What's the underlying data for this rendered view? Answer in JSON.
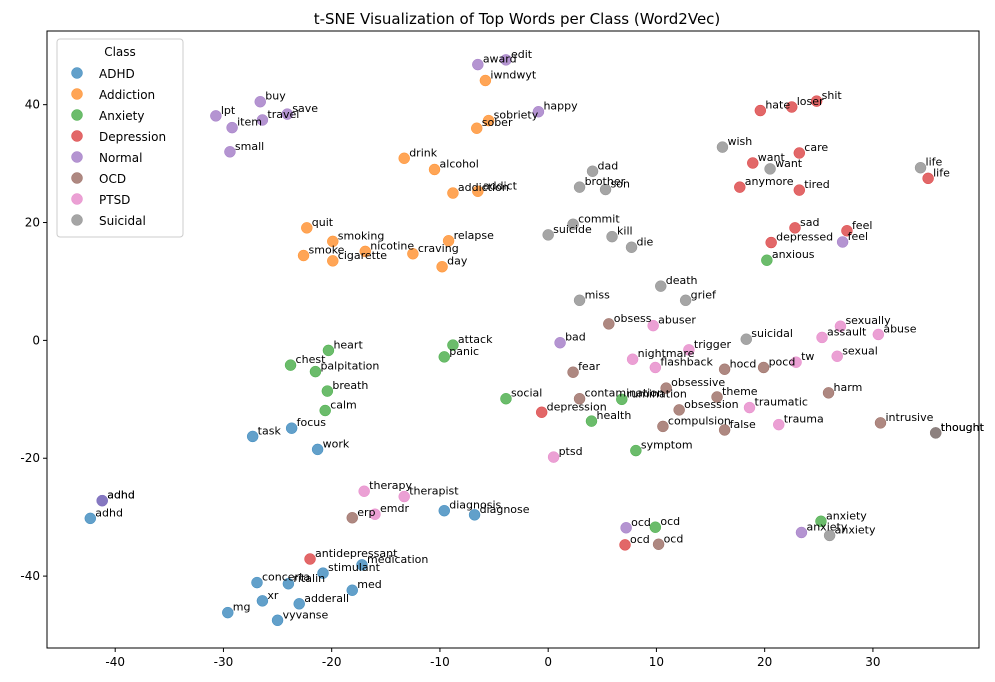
{
  "chart_data": {
    "type": "scatter",
    "title": "t-SNE Visualization of Top Words per Class (Word2Vec)",
    "xlabel": "",
    "ylabel": "",
    "xlim": [
      -46.3,
      39.8
    ],
    "ylim": [
      -52.2,
      52.5
    ],
    "xticks": [
      -40,
      -30,
      -20,
      -10,
      0,
      10,
      20,
      30
    ],
    "yticks": [
      -40,
      -20,
      0,
      20,
      40
    ],
    "grid": false,
    "legend": {
      "title": "Class",
      "placement": "top-left"
    },
    "series": [
      {
        "name": "ADHD",
        "color": "#1f77b4",
        "points": [
          {
            "x": -42.3,
            "y": -30.2,
            "label": "adhd"
          },
          {
            "x": -41.2,
            "y": -27.2,
            "label": "adhd"
          },
          {
            "x": -27.3,
            "y": -16.3,
            "label": "task"
          },
          {
            "x": -23.7,
            "y": -14.9,
            "label": "focus"
          },
          {
            "x": -21.3,
            "y": -18.5,
            "label": "work"
          },
          {
            "x": -9.6,
            "y": -28.9,
            "label": "diagnosis"
          },
          {
            "x": -6.8,
            "y": -29.6,
            "label": "diagnose"
          },
          {
            "x": -17.2,
            "y": -38.1,
            "label": "medication"
          },
          {
            "x": -20.8,
            "y": -39.5,
            "label": "stimulant"
          },
          {
            "x": -26.9,
            "y": -41.1,
            "label": "concerta"
          },
          {
            "x": -24.0,
            "y": -41.3,
            "label": "ritalin"
          },
          {
            "x": -18.1,
            "y": -42.4,
            "label": "med"
          },
          {
            "x": -26.4,
            "y": -44.2,
            "label": "xr"
          },
          {
            "x": -23.0,
            "y": -44.7,
            "label": "adderall"
          },
          {
            "x": -29.6,
            "y": -46.2,
            "label": "mg"
          },
          {
            "x": -25.0,
            "y": -47.5,
            "label": "vyvanse"
          }
        ]
      },
      {
        "name": "Addiction",
        "color": "#ff7f0e",
        "points": [
          {
            "x": -5.8,
            "y": 44.1,
            "label": "iwndwyt"
          },
          {
            "x": -5.5,
            "y": 37.3,
            "label": "sobriety"
          },
          {
            "x": -6.6,
            "y": 36.0,
            "label": "sober"
          },
          {
            "x": -13.3,
            "y": 30.9,
            "label": "drink"
          },
          {
            "x": -10.5,
            "y": 29.0,
            "label": "alcohol"
          },
          {
            "x": -8.8,
            "y": 25.0,
            "label": "addiction"
          },
          {
            "x": -6.5,
            "y": 25.3,
            "label": "addict"
          },
          {
            "x": -22.3,
            "y": 19.1,
            "label": "quit"
          },
          {
            "x": -19.9,
            "y": 16.8,
            "label": "smoking"
          },
          {
            "x": -9.2,
            "y": 16.9,
            "label": "relapse"
          },
          {
            "x": -16.9,
            "y": 15.1,
            "label": "nicotine"
          },
          {
            "x": -12.5,
            "y": 14.7,
            "label": "craving"
          },
          {
            "x": -22.6,
            "y": 14.4,
            "label": "smoke"
          },
          {
            "x": -19.9,
            "y": 13.5,
            "label": "cigarette"
          },
          {
            "x": -9.8,
            "y": 12.5,
            "label": "day"
          }
        ]
      },
      {
        "name": "Anxiety",
        "color": "#2ca02c",
        "points": [
          {
            "x": 20.2,
            "y": 13.6,
            "label": "anxious"
          },
          {
            "x": -8.8,
            "y": -0.8,
            "label": "attack"
          },
          {
            "x": -9.6,
            "y": -2.8,
            "label": "panic"
          },
          {
            "x": -20.3,
            "y": -1.7,
            "label": "heart"
          },
          {
            "x": -23.8,
            "y": -4.2,
            "label": "chest"
          },
          {
            "x": -21.5,
            "y": -5.3,
            "label": "palpitation"
          },
          {
            "x": -20.4,
            "y": -8.6,
            "label": "breath"
          },
          {
            "x": -20.6,
            "y": -11.9,
            "label": "calm"
          },
          {
            "x": -3.9,
            "y": -9.9,
            "label": "social"
          },
          {
            "x": 6.8,
            "y": -10.0,
            "label": "rumination"
          },
          {
            "x": 4.0,
            "y": -13.7,
            "label": "health"
          },
          {
            "x": 8.1,
            "y": -18.7,
            "label": "symptom"
          },
          {
            "x": 9.9,
            "y": -31.7,
            "label": "ocd"
          },
          {
            "x": 25.2,
            "y": -30.7,
            "label": "anxiety"
          }
        ]
      },
      {
        "name": "Depression",
        "color": "#d62728",
        "points": [
          {
            "x": 24.8,
            "y": 40.6,
            "label": "shit"
          },
          {
            "x": 22.5,
            "y": 39.6,
            "label": "loser"
          },
          {
            "x": 19.6,
            "y": 39.0,
            "label": "hate"
          },
          {
            "x": 23.2,
            "y": 31.8,
            "label": "care"
          },
          {
            "x": 18.9,
            "y": 30.1,
            "label": "want"
          },
          {
            "x": 17.7,
            "y": 26.0,
            "label": "anymore"
          },
          {
            "x": 23.2,
            "y": 25.5,
            "label": "tired"
          },
          {
            "x": 35.1,
            "y": 27.5,
            "label": "life"
          },
          {
            "x": 22.8,
            "y": 19.1,
            "label": "sad"
          },
          {
            "x": 27.6,
            "y": 18.6,
            "label": "feel"
          },
          {
            "x": 20.6,
            "y": 16.6,
            "label": "depressed"
          },
          {
            "x": -0.6,
            "y": -12.2,
            "label": "depression"
          },
          {
            "x": -22.0,
            "y": -37.1,
            "label": "antidepressant"
          },
          {
            "x": 7.1,
            "y": -34.7,
            "label": "ocd"
          }
        ]
      },
      {
        "name": "Normal",
        "color": "#9467bd",
        "points": [
          {
            "x": -3.9,
            "y": 47.6,
            "label": "edit"
          },
          {
            "x": -6.5,
            "y": 46.8,
            "label": "award"
          },
          {
            "x": -0.9,
            "y": 38.8,
            "label": "happy"
          },
          {
            "x": -26.6,
            "y": 40.5,
            "label": "buy"
          },
          {
            "x": -24.1,
            "y": 38.4,
            "label": "save"
          },
          {
            "x": -30.7,
            "y": 38.1,
            "label": "lpt"
          },
          {
            "x": -26.4,
            "y": 37.4,
            "label": "travel"
          },
          {
            "x": -29.2,
            "y": 36.1,
            "label": "item"
          },
          {
            "x": -29.4,
            "y": 32.0,
            "label": "small"
          },
          {
            "x": 27.2,
            "y": 16.7,
            "label": "feel"
          },
          {
            "x": 1.1,
            "y": -0.4,
            "label": "bad"
          },
          {
            "x": -41.2,
            "y": -27.2,
            "label": "adhd"
          },
          {
            "x": 23.4,
            "y": -32.6,
            "label": "anxiety"
          },
          {
            "x": 7.2,
            "y": -31.8,
            "label": "ocd"
          }
        ]
      },
      {
        "name": "OCD",
        "color": "#8c564b",
        "points": [
          {
            "x": 5.6,
            "y": 2.8,
            "label": "obsess"
          },
          {
            "x": 2.3,
            "y": -5.4,
            "label": "fear"
          },
          {
            "x": 16.3,
            "y": -4.9,
            "label": "hocd"
          },
          {
            "x": 19.9,
            "y": -4.6,
            "label": "pocd"
          },
          {
            "x": 10.9,
            "y": -8.1,
            "label": "obsessive"
          },
          {
            "x": 15.6,
            "y": -9.6,
            "label": "theme"
          },
          {
            "x": 2.9,
            "y": -9.9,
            "label": "contamination"
          },
          {
            "x": 12.1,
            "y": -11.8,
            "label": "obsession"
          },
          {
            "x": 25.9,
            "y": -8.9,
            "label": "harm"
          },
          {
            "x": 10.6,
            "y": -14.6,
            "label": "compulsion"
          },
          {
            "x": 16.3,
            "y": -15.2,
            "label": "false"
          },
          {
            "x": 30.7,
            "y": -14.0,
            "label": "intrusive"
          },
          {
            "x": 35.8,
            "y": -15.7,
            "label": "thought"
          },
          {
            "x": -18.1,
            "y": -30.1,
            "label": "erp"
          },
          {
            "x": 10.2,
            "y": -34.6,
            "label": "ocd"
          }
        ]
      },
      {
        "name": "PTSD",
        "color": "#e377c2",
        "points": [
          {
            "x": 9.7,
            "y": 2.5,
            "label": "abuser"
          },
          {
            "x": 25.3,
            "y": 0.5,
            "label": "assault"
          },
          {
            "x": 27.0,
            "y": 2.4,
            "label": "sexually"
          },
          {
            "x": 30.5,
            "y": 1.0,
            "label": "abuse"
          },
          {
            "x": 26.7,
            "y": -2.7,
            "label": "sexual"
          },
          {
            "x": 13.0,
            "y": -1.6,
            "label": "trigger"
          },
          {
            "x": 7.8,
            "y": -3.2,
            "label": "nightmare"
          },
          {
            "x": 9.9,
            "y": -4.6,
            "label": "flashback"
          },
          {
            "x": 22.9,
            "y": -3.7,
            "label": "tw"
          },
          {
            "x": 18.6,
            "y": -11.4,
            "label": "traumatic"
          },
          {
            "x": 21.3,
            "y": -14.3,
            "label": "trauma"
          },
          {
            "x": 0.5,
            "y": -19.8,
            "label": "ptsd"
          },
          {
            "x": -17.0,
            "y": -25.6,
            "label": "therapy"
          },
          {
            "x": -13.3,
            "y": -26.5,
            "label": "therapist"
          },
          {
            "x": -16.0,
            "y": -29.5,
            "label": "emdr"
          }
        ]
      },
      {
        "name": "Suicidal",
        "color": "#7f7f7f",
        "points": [
          {
            "x": 16.1,
            "y": 32.8,
            "label": "wish"
          },
          {
            "x": 20.5,
            "y": 29.1,
            "label": "want"
          },
          {
            "x": 34.4,
            "y": 29.3,
            "label": "life"
          },
          {
            "x": 4.1,
            "y": 28.7,
            "label": "dad"
          },
          {
            "x": 2.9,
            "y": 26.0,
            "label": "brother"
          },
          {
            "x": 5.3,
            "y": 25.6,
            "label": "son"
          },
          {
            "x": 2.3,
            "y": 19.7,
            "label": "commit"
          },
          {
            "x": 0.0,
            "y": 17.9,
            "label": "suicide"
          },
          {
            "x": 5.9,
            "y": 17.6,
            "label": "kill"
          },
          {
            "x": 7.7,
            "y": 15.8,
            "label": "die"
          },
          {
            "x": 10.4,
            "y": 9.2,
            "label": "death"
          },
          {
            "x": 2.9,
            "y": 6.8,
            "label": "miss"
          },
          {
            "x": 12.7,
            "y": 6.8,
            "label": "grief"
          },
          {
            "x": 18.3,
            "y": 0.2,
            "label": "suicidal"
          },
          {
            "x": 35.8,
            "y": -15.7,
            "label": "thought"
          },
          {
            "x": 26.0,
            "y": -33.1,
            "label": "anxiety"
          }
        ]
      }
    ]
  }
}
